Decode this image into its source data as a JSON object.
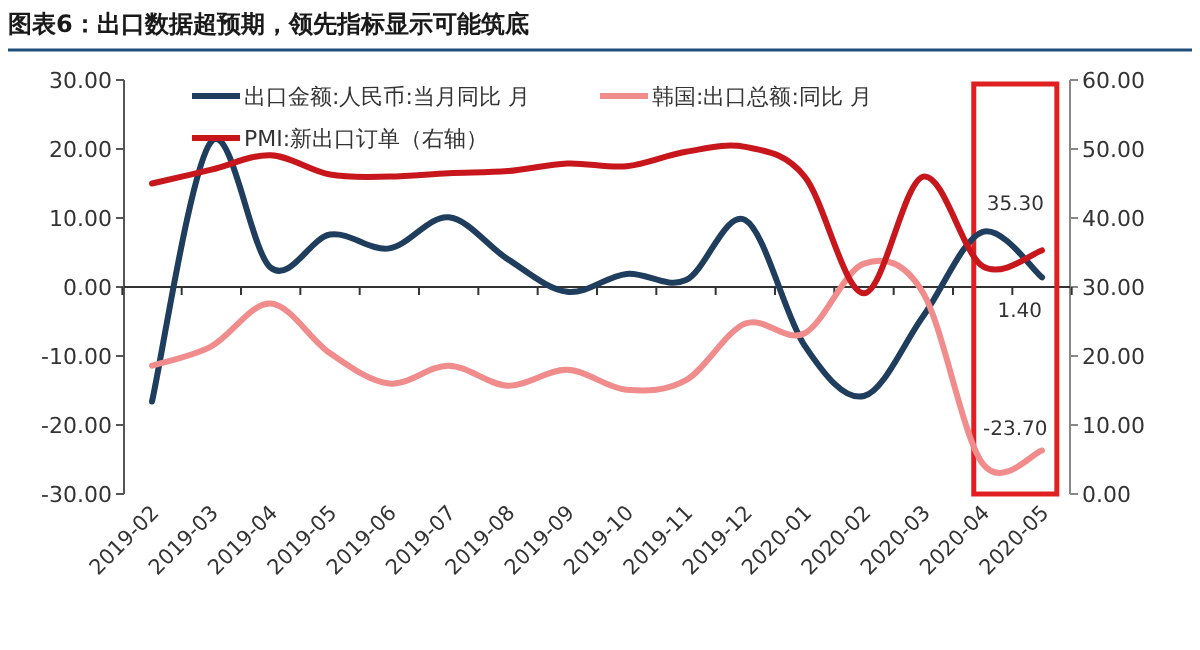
{
  "chart_data": {
    "type": "line",
    "title": "图表6：出口数据超预期，领先指标显示可能筑底",
    "categories": [
      "2019-02",
      "2019-03",
      "2019-04",
      "2019-05",
      "2019-06",
      "2019-07",
      "2019-08",
      "2019-09",
      "2019-10",
      "2019-11",
      "2019-12",
      "2020-01",
      "2020-02",
      "2020-03",
      "2020-04",
      "2020-05"
    ],
    "series": [
      {
        "name": "出口金额:人民币:当月同比  月",
        "color": "#1f3d5c",
        "values": [
          -16.6,
          21.1,
          2.8,
          7.6,
          5.6,
          10.1,
          4.0,
          -0.7,
          1.9,
          1.0,
          9.7,
          -8.5,
          -15.8,
          -4.2,
          8.0,
          1.4
        ],
        "value_labels": [
          null,
          null,
          null,
          null,
          null,
          null,
          null,
          null,
          null,
          null,
          null,
          null,
          null,
          null,
          null,
          "1.40"
        ]
      },
      {
        "name": "韩国:出口总额:同比  月",
        "color": "#f08c8c",
        "values": [
          -11.4,
          -8.6,
          -2.4,
          -9.6,
          -14.0,
          -11.4,
          -14.3,
          -12.0,
          -14.9,
          -13.5,
          -5.3,
          -6.7,
          3.4,
          -0.9,
          -25.6,
          -23.7
        ],
        "value_labels": [
          null,
          null,
          null,
          null,
          null,
          null,
          null,
          null,
          null,
          null,
          null,
          null,
          null,
          null,
          null,
          "-23.70"
        ]
      },
      {
        "name": "PMI:新出口订单（右轴）",
        "color": "#c8161d",
        "axis": "y2",
        "values": [
          45.0,
          47.0,
          49.1,
          46.3,
          46.0,
          46.5,
          46.8,
          47.9,
          47.5,
          49.6,
          50.3,
          46.0,
          29.1,
          46.0,
          33.0,
          35.3
        ],
        "value_labels": [
          null,
          null,
          null,
          null,
          null,
          null,
          null,
          null,
          null,
          null,
          null,
          null,
          null,
          null,
          null,
          "35.30"
        ]
      }
    ],
    "ylim": [
      -30,
      30
    ],
    "yticks": [
      {
        "value": -30,
        "label": "-30.00"
      },
      {
        "value": -20,
        "label": "-20.00"
      },
      {
        "value": -10,
        "label": "-10.00"
      },
      {
        "value": 0,
        "label": "0.00"
      },
      {
        "value": 10,
        "label": "10.00"
      },
      {
        "value": 20,
        "label": "20.00"
      },
      {
        "value": 30,
        "label": "30.00"
      }
    ],
    "y2lim": [
      0,
      60
    ],
    "y2ticks": [
      {
        "value": 0,
        "label": "0.00"
      },
      {
        "value": 10,
        "label": "10.00"
      },
      {
        "value": 20,
        "label": "20.00"
      },
      {
        "value": 30,
        "label": "30.00"
      },
      {
        "value": 40,
        "label": "40.00"
      },
      {
        "value": 50,
        "label": "50.00"
      },
      {
        "value": 60,
        "label": "60.00"
      }
    ],
    "legend": "top",
    "marker": "none",
    "line_style": "solid"
  }
}
